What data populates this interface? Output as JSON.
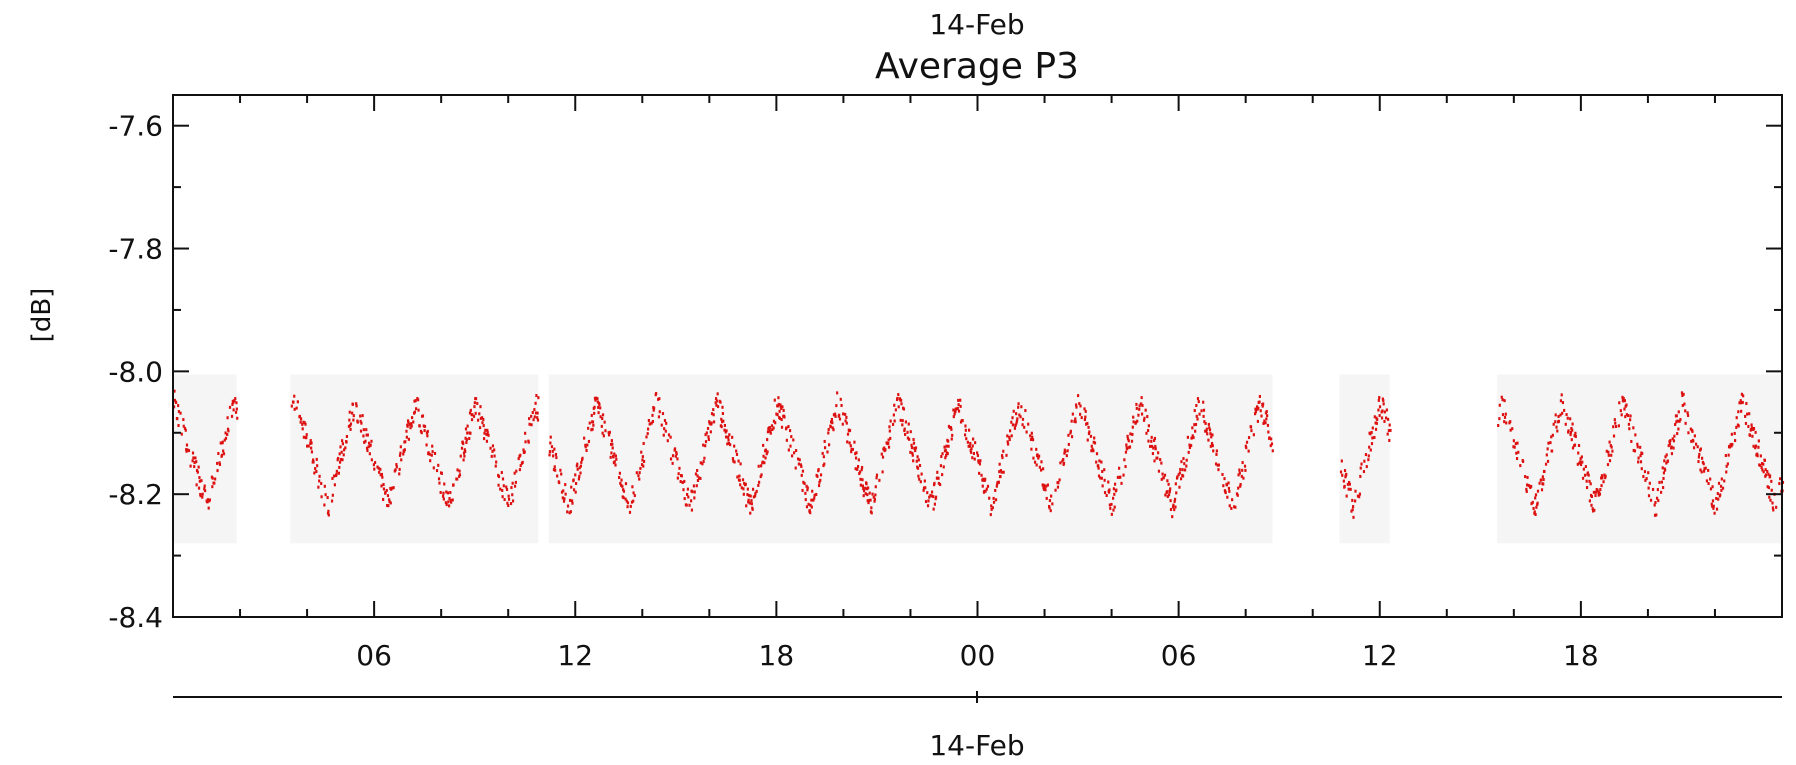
{
  "chart_data": {
    "type": "scatter",
    "supertitle": "14-Feb",
    "title": "Average P3",
    "ylabel": "[dB]",
    "xlabel": "14-Feb",
    "ylim": [
      -8.4,
      -7.55
    ],
    "yticks": [
      -7.6,
      -7.8,
      -8.0,
      -8.2,
      -8.4
    ],
    "ytick_labels": [
      "-7.6",
      "-7.8",
      "-8.0",
      "-8.2",
      "-8.4"
    ],
    "xlim_hours": [
      0,
      48
    ],
    "xticks_hours": [
      6,
      12,
      18,
      24,
      30,
      36,
      42
    ],
    "xtick_labels": [
      "06",
      "12",
      "18",
      "00",
      "06",
      "12",
      "18"
    ],
    "grid": false,
    "series": [
      {
        "color": "#dd1111",
        "segments": [
          {
            "start": 0.0,
            "end": 1.9
          },
          {
            "start": 3.5,
            "end": 10.9
          },
          {
            "start": 11.2,
            "end": 32.8
          },
          {
            "start": 34.8,
            "end": 36.3
          },
          {
            "start": 39.5,
            "end": 48.0
          }
        ],
        "oscillation": {
          "period_hours": 1.8,
          "min": -8.22,
          "max": -8.05
        }
      }
    ]
  }
}
